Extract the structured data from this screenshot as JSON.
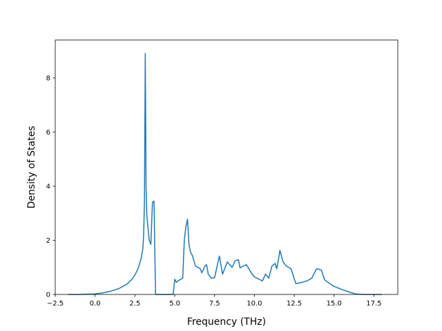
{
  "chart_data": {
    "type": "line",
    "title": "",
    "xlabel": "Frequency (THz)",
    "ylabel": "Density of States",
    "xlim": [
      -2.5,
      19.0
    ],
    "ylim": [
      0,
      9.4
    ],
    "xticks": [
      -2.5,
      0.0,
      2.5,
      5.0,
      7.5,
      10.0,
      12.5,
      15.0,
      17.5
    ],
    "xtick_labels": [
      "−2.5",
      "0.0",
      "2.5",
      "5.0",
      "7.5",
      "10.0",
      "12.5",
      "15.0",
      "17.5"
    ],
    "yticks": [
      0,
      2,
      4,
      6,
      8
    ],
    "ytick_labels": [
      "0",
      "2",
      "4",
      "6",
      "8"
    ],
    "grid": false,
    "line_color": "#1f77b4",
    "series": [
      {
        "x": [
          -1.7,
          -1.0,
          0.0,
          0.5,
          1.0,
          1.5,
          2.0,
          2.3,
          2.5,
          2.7,
          2.8,
          2.9,
          3.0,
          3.05,
          3.1,
          3.15,
          3.2,
          3.25,
          3.3,
          3.35,
          3.4,
          3.5,
          3.6,
          3.7,
          3.75,
          3.8,
          3.85,
          4.0,
          4.5,
          4.9,
          5.0,
          5.1,
          5.2,
          5.5,
          5.6,
          5.7,
          5.8,
          5.9,
          6.0,
          6.1,
          6.3,
          6.6,
          6.7,
          6.9,
          7.0,
          7.1,
          7.3,
          7.5,
          7.8,
          8.0,
          8.3,
          8.6,
          8.8,
          9.0,
          9.1,
          9.3,
          9.5,
          9.7,
          9.8,
          10.0,
          10.5,
          10.7,
          10.9,
          11.1,
          11.3,
          11.4,
          11.5,
          11.6,
          11.8,
          12.0,
          12.3,
          12.6,
          12.8,
          13.0,
          13.3,
          13.6,
          13.9,
          14.0,
          14.2,
          14.4,
          14.6,
          15.0,
          15.5,
          16.0,
          16.3,
          16.5,
          17.0,
          18.0
        ],
        "y": [
          0.0,
          0.0,
          0.02,
          0.06,
          0.12,
          0.22,
          0.38,
          0.55,
          0.72,
          0.95,
          1.15,
          1.35,
          1.7,
          2.2,
          3.5,
          8.9,
          4.0,
          2.9,
          2.6,
          2.3,
          2.0,
          1.85,
          3.4,
          3.45,
          1.5,
          0.0,
          0.0,
          0.0,
          0.0,
          0.0,
          0.56,
          0.45,
          0.5,
          0.6,
          2.0,
          2.5,
          2.78,
          1.8,
          1.55,
          1.45,
          1.05,
          0.95,
          0.8,
          1.05,
          1.1,
          0.75,
          0.6,
          0.62,
          1.42,
          0.75,
          1.2,
          1.0,
          1.25,
          1.28,
          0.98,
          1.05,
          1.1,
          0.9,
          0.8,
          0.65,
          0.5,
          0.75,
          0.6,
          1.05,
          1.15,
          0.95,
          1.25,
          1.63,
          1.2,
          1.05,
          0.95,
          0.4,
          0.42,
          0.45,
          0.5,
          0.6,
          0.95,
          0.94,
          0.9,
          0.55,
          0.45,
          0.3,
          0.18,
          0.08,
          0.03,
          0.01,
          0.0,
          0.0
        ]
      }
    ]
  }
}
